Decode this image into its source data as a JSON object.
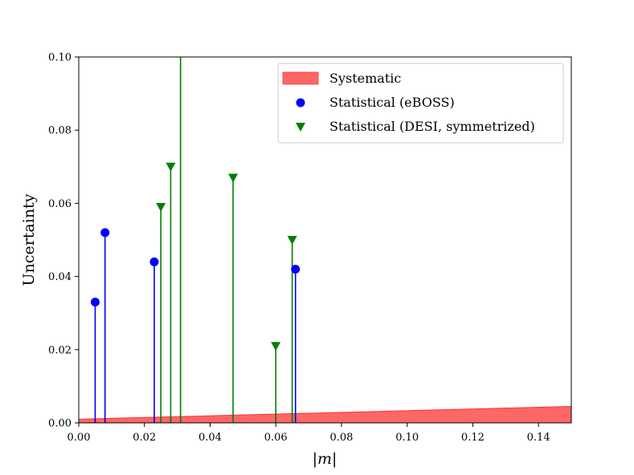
{
  "chart_data": {
    "type": "scatter",
    "title": "",
    "xlabel": "|m|",
    "ylabel": "Uncertainty",
    "xlim": [
      0.0,
      0.15
    ],
    "ylim": [
      0.0,
      0.1
    ],
    "xticks": [
      "0.00",
      "0.02",
      "0.04",
      "0.06",
      "0.08",
      "0.10",
      "0.12",
      "0.14"
    ],
    "yticks": [
      "0.00",
      "0.02",
      "0.04",
      "0.06",
      "0.08",
      "0.10"
    ],
    "grid": false,
    "legend_position": "top-right",
    "systematic": {
      "name": "Systematic",
      "color": "#ff6666",
      "x": [
        0.0,
        0.15
      ],
      "lower": [
        0.0,
        0.0
      ],
      "upper": [
        0.001,
        0.0045
      ]
    },
    "series": [
      {
        "name": "Statistical (eBOSS)",
        "marker": "circle",
        "color": "#0000ff",
        "x": [
          0.005,
          0.008,
          0.023,
          0.066
        ],
        "values": [
          0.033,
          0.052,
          0.044,
          0.042
        ]
      },
      {
        "name": "Statistical (DESI, symmetrized)",
        "marker": "triangle-down",
        "color": "#008000",
        "x": [
          0.025,
          0.028,
          0.031,
          0.047,
          0.06,
          0.065
        ],
        "values": [
          0.059,
          0.07,
          0.105,
          0.067,
          0.021,
          0.05
        ]
      }
    ]
  }
}
